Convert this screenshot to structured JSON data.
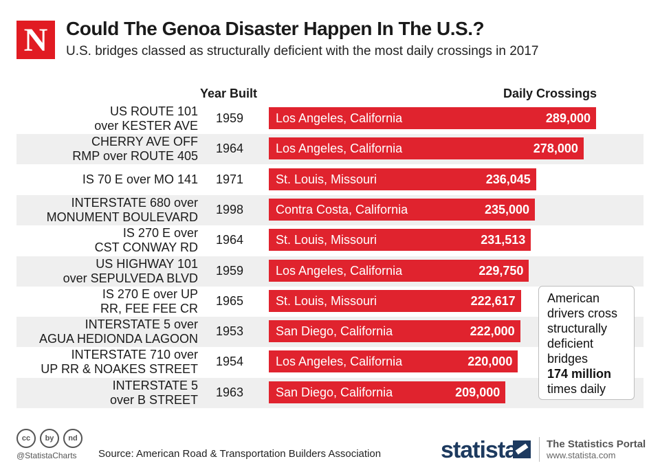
{
  "brand": {
    "logo_letter": "N",
    "logo_color": "#e11b22"
  },
  "header": {
    "title": "Could The Genoa Disaster Happen In The U.S.?",
    "subtitle": "U.S. bridges classed as structurally deficient with the most daily crossings in 2017"
  },
  "columns": {
    "year": "Year Built",
    "crossings": "Daily Crossings"
  },
  "chart_data": {
    "type": "bar",
    "orientation": "horizontal",
    "title": "Could The Genoa Disaster Happen In The U.S.?",
    "subtitle": "U.S. bridges classed as structurally deficient with the most daily crossings in 2017",
    "xlabel": "Daily Crossings",
    "ylabel": "",
    "bar_color": "#e0232e",
    "categories": [
      [
        "US ROUTE 101",
        "over KESTER AVE"
      ],
      [
        "CHERRY AVE OFF",
        "RMP over ROUTE 405"
      ],
      [
        "IS 70 E over MO 141"
      ],
      [
        "INTERSTATE 680 over",
        "MONUMENT BOULEVARD"
      ],
      [
        "IS 270 E over",
        "CST CONWAY RD"
      ],
      [
        "US HIGHWAY 101",
        "over SEPULVEDA BLVD"
      ],
      [
        "IS 270 E over UP",
        "RR, FEE FEE CR"
      ],
      [
        "INTERSTATE  5 over",
        "AGUA HEDIONDA LAGOON"
      ],
      [
        "INTERSTATE 710 over",
        "UP RR & NOAKES STREET"
      ],
      [
        "INTERSTATE 5",
        "over B STREET"
      ]
    ],
    "year_built": [
      "1959",
      "1964",
      "1971",
      "1998",
      "1964",
      "1959",
      "1965",
      "1953",
      "1954",
      "1963"
    ],
    "locations": [
      "Los Angeles, California",
      "Los Angeles, California",
      "St. Louis, Missouri",
      "Contra Costa, California",
      "St. Louis, Missouri",
      "Los Angeles, California",
      "St. Louis, Missouri",
      "San Diego, California",
      "Los Angeles, California",
      "San Diego, California"
    ],
    "values": [
      289000,
      278000,
      236045,
      235000,
      231513,
      229750,
      222617,
      222000,
      220000,
      209000
    ],
    "value_labels": [
      "289,000",
      "278,000",
      "236,045",
      "235,000",
      "231,513",
      "229,750",
      "222,617",
      "222,000",
      "220,000",
      "209,000"
    ]
  },
  "callout": {
    "lines": [
      "American",
      "drivers cross",
      "structurally",
      "deficient",
      "bridges"
    ],
    "highlight": "174 million",
    "tail": "times daily"
  },
  "footer": {
    "license_icons": [
      "cc",
      "by",
      "nd"
    ],
    "handle": "@StatistaCharts",
    "source": "Source: American Road & Transportation Builders Association",
    "statista": "statista",
    "portal": "The Statistics Portal",
    "url": "www.statista.com"
  }
}
